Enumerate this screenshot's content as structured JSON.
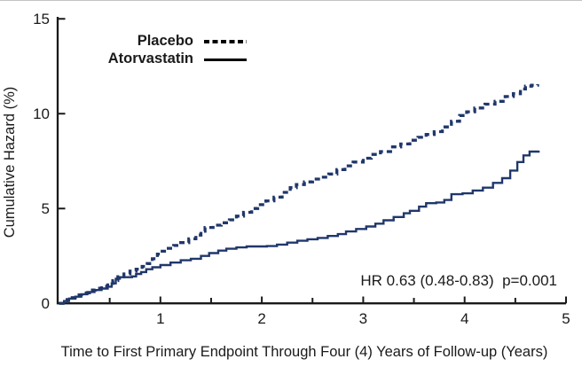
{
  "figure": {
    "background": "#ffffff",
    "curve_color": "#20376b",
    "axis_color": "#1a1a1a"
  },
  "legend": {
    "items": [
      {
        "label": "Placebo",
        "line_style": "dashed"
      },
      {
        "label": "Atorvastatin",
        "line_style": "solid"
      }
    ]
  },
  "annotation": {
    "text": "HR 0.63 (0.48-0.83)  p=0.001"
  },
  "chart_data": {
    "type": "line",
    "subtype": "step-cumulative-hazard",
    "title": "",
    "xlabel": "Time to First Primary Endpoint Through Four (4) Years of Follow-up (Years)",
    "ylabel": "Cumulative Hazard (%)",
    "xlim": [
      0,
      5
    ],
    "ylim": [
      0,
      15
    ],
    "xticks": [
      1,
      2,
      3,
      4,
      5
    ],
    "minor_xticks": [
      0.5,
      1.5,
      2.5,
      3.5,
      4.5
    ],
    "yticks": [
      0,
      5,
      10,
      15
    ],
    "grid": false,
    "legend_position": "top-left-inside",
    "annotation": "HR 0.63 (0.48-0.83)  p=0.001",
    "series": [
      {
        "name": "Placebo",
        "style": "dashed",
        "color": "#20376b",
        "points": [
          [
            0,
            0
          ],
          [
            0.04,
            0.1
          ],
          [
            0.08,
            0.2
          ],
          [
            0.13,
            0.3
          ],
          [
            0.18,
            0.45
          ],
          [
            0.24,
            0.55
          ],
          [
            0.3,
            0.7
          ],
          [
            0.36,
            0.8
          ],
          [
            0.42,
            0.9
          ],
          [
            0.48,
            1.05
          ],
          [
            0.53,
            1.2
          ],
          [
            0.58,
            1.4
          ],
          [
            0.64,
            1.55
          ],
          [
            0.7,
            1.7
          ],
          [
            0.76,
            1.8
          ],
          [
            0.82,
            1.95
          ],
          [
            0.87,
            2.1
          ],
          [
            0.92,
            2.35
          ],
          [
            0.97,
            2.6
          ],
          [
            1.0,
            2.75
          ],
          [
            1.06,
            2.9
          ],
          [
            1.13,
            3.05
          ],
          [
            1.2,
            3.2
          ],
          [
            1.28,
            3.4
          ],
          [
            1.35,
            3.6
          ],
          [
            1.4,
            3.8
          ],
          [
            1.44,
            4.0
          ],
          [
            1.52,
            4.12
          ],
          [
            1.6,
            4.25
          ],
          [
            1.68,
            4.4
          ],
          [
            1.75,
            4.6
          ],
          [
            1.82,
            4.8
          ],
          [
            1.9,
            5.0
          ],
          [
            1.96,
            5.2
          ],
          [
            2.04,
            5.4
          ],
          [
            2.12,
            5.6
          ],
          [
            2.2,
            5.85
          ],
          [
            2.28,
            6.1
          ],
          [
            2.34,
            6.26
          ],
          [
            2.42,
            6.4
          ],
          [
            2.5,
            6.55
          ],
          [
            2.58,
            6.65
          ],
          [
            2.66,
            6.82
          ],
          [
            2.74,
            7.05
          ],
          [
            2.82,
            7.25
          ],
          [
            2.9,
            7.45
          ],
          [
            3.0,
            7.65
          ],
          [
            3.08,
            7.85
          ],
          [
            3.17,
            8.0
          ],
          [
            3.27,
            8.25
          ],
          [
            3.37,
            8.4
          ],
          [
            3.46,
            8.6
          ],
          [
            3.54,
            8.75
          ],
          [
            3.62,
            8.9
          ],
          [
            3.7,
            9.05
          ],
          [
            3.78,
            9.3
          ],
          [
            3.87,
            9.6
          ],
          [
            3.95,
            9.9
          ],
          [
            4.02,
            10.1
          ],
          [
            4.1,
            10.3
          ],
          [
            4.2,
            10.5
          ],
          [
            4.3,
            10.65
          ],
          [
            4.4,
            10.9
          ],
          [
            4.48,
            11.05
          ],
          [
            4.55,
            11.3
          ],
          [
            4.6,
            11.45
          ],
          [
            4.66,
            11.5
          ],
          [
            4.72,
            11.55
          ]
        ]
      },
      {
        "name": "Atorvastatin",
        "style": "solid",
        "color": "#20376b",
        "points": [
          [
            0,
            0
          ],
          [
            0.05,
            0.12
          ],
          [
            0.1,
            0.25
          ],
          [
            0.16,
            0.35
          ],
          [
            0.22,
            0.48
          ],
          [
            0.28,
            0.6
          ],
          [
            0.35,
            0.7
          ],
          [
            0.42,
            0.78
          ],
          [
            0.48,
            0.88
          ],
          [
            0.52,
            1.05
          ],
          [
            0.56,
            1.3
          ],
          [
            0.6,
            1.38
          ],
          [
            0.72,
            1.42
          ],
          [
            0.76,
            1.55
          ],
          [
            0.81,
            1.65
          ],
          [
            0.86,
            1.8
          ],
          [
            0.92,
            1.9
          ],
          [
            1.0,
            2.02
          ],
          [
            1.1,
            2.15
          ],
          [
            1.2,
            2.27
          ],
          [
            1.3,
            2.35
          ],
          [
            1.4,
            2.5
          ],
          [
            1.48,
            2.65
          ],
          [
            1.57,
            2.78
          ],
          [
            1.65,
            2.88
          ],
          [
            1.75,
            2.95
          ],
          [
            1.85,
            3.0
          ],
          [
            2.05,
            3.02
          ],
          [
            2.15,
            3.1
          ],
          [
            2.25,
            3.2
          ],
          [
            2.35,
            3.3
          ],
          [
            2.45,
            3.38
          ],
          [
            2.55,
            3.45
          ],
          [
            2.65,
            3.55
          ],
          [
            2.75,
            3.65
          ],
          [
            2.83,
            3.79
          ],
          [
            2.93,
            3.92
          ],
          [
            3.03,
            4.05
          ],
          [
            3.12,
            4.2
          ],
          [
            3.2,
            4.38
          ],
          [
            3.3,
            4.55
          ],
          [
            3.4,
            4.75
          ],
          [
            3.46,
            4.88
          ],
          [
            3.55,
            5.1
          ],
          [
            3.62,
            5.28
          ],
          [
            3.72,
            5.32
          ],
          [
            3.8,
            5.45
          ],
          [
            3.87,
            5.75
          ],
          [
            3.98,
            5.8
          ],
          [
            4.08,
            5.95
          ],
          [
            4.18,
            6.1
          ],
          [
            4.28,
            6.35
          ],
          [
            4.37,
            6.6
          ],
          [
            4.45,
            7.0
          ],
          [
            4.52,
            7.45
          ],
          [
            4.58,
            7.8
          ],
          [
            4.64,
            8.0
          ],
          [
            4.73,
            8.05
          ]
        ]
      }
    ]
  }
}
